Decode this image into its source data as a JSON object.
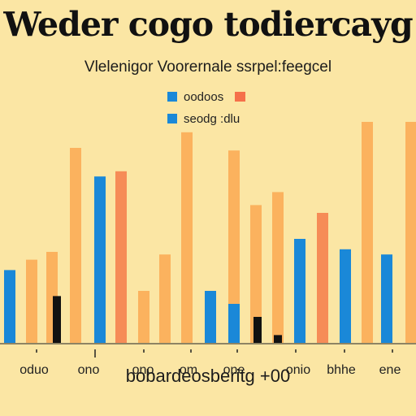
{
  "chart_data": {
    "type": "bar",
    "title": "Weder cogo todiercayg",
    "subtitle": "Vlelenigor Voorernale ssrpel:feegcel",
    "xlabel": "bobardeosberitg +00",
    "ylabel": "",
    "grid": false,
    "legend_placement": "top-center",
    "categories": [
      "oduo",
      "ono",
      "ono",
      "om",
      "one",
      "onio",
      "bhhe",
      "ene"
    ],
    "legend": [
      {
        "label": "oodoos",
        "color": "#1a88d8"
      },
      {
        "label": "seodg :dlu",
        "color": "#1a88d8"
      }
    ],
    "colors": {
      "background": "#fbe6a4",
      "blue": "#1a88d8",
      "orange": "#fbb25e",
      "coral": "#f68c57",
      "black": "#111111",
      "legend_coral": "#f5704a"
    },
    "ylim": [
      0,
      100
    ],
    "bars": [
      {
        "x": 12,
        "value": 28,
        "color": "blue"
      },
      {
        "x": 39,
        "value": 32,
        "color": "orange"
      },
      {
        "x": 64,
        "value": 35,
        "color": "orange"
      },
      {
        "x": 70,
        "value": 18,
        "color": "black"
      },
      {
        "x": 93,
        "value": 75,
        "color": "orange"
      },
      {
        "x": 123,
        "value": 64,
        "color": "blue"
      },
      {
        "x": 149,
        "value": 66,
        "color": "coral"
      },
      {
        "x": 177,
        "value": 20,
        "color": "orange"
      },
      {
        "x": 203,
        "value": 34,
        "color": "orange"
      },
      {
        "x": 230,
        "value": 81,
        "color": "orange"
      },
      {
        "x": 259,
        "value": 20,
        "color": "blue"
      },
      {
        "x": 288,
        "value": 74,
        "color": "orange"
      },
      {
        "x": 288,
        "value": 15,
        "color": "blue"
      },
      {
        "x": 315,
        "value": 53,
        "color": "orange"
      },
      {
        "x": 317,
        "value": 10,
        "color": "black"
      },
      {
        "x": 342,
        "value": 58,
        "color": "orange"
      },
      {
        "x": 342,
        "value": 3,
        "color": "black"
      },
      {
        "x": 369,
        "value": 40,
        "color": "blue"
      },
      {
        "x": 397,
        "value": 50,
        "color": "coral"
      },
      {
        "x": 425,
        "value": 36,
        "color": "blue"
      },
      {
        "x": 452,
        "value": 85,
        "color": "orange"
      },
      {
        "x": 476,
        "value": 34,
        "color": "blue"
      },
      {
        "x": 506,
        "value": 85,
        "color": "orange"
      }
    ]
  }
}
